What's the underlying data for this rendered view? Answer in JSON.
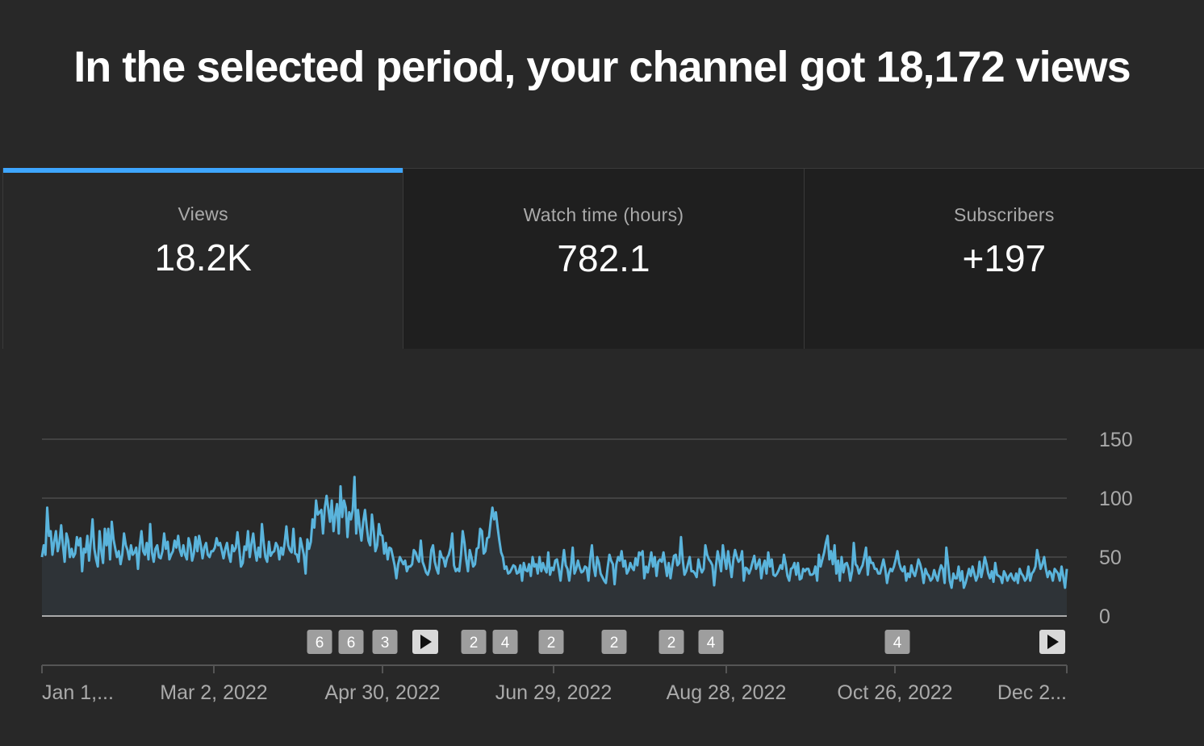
{
  "headline": "In the selected period, your channel got 18,172 views",
  "tabs": [
    {
      "label": "Views",
      "value": "18.2K",
      "active": true
    },
    {
      "label": "Watch time (hours)",
      "value": "782.1",
      "active": false
    },
    {
      "label": "Subscribers",
      "value": "+197",
      "active": false
    }
  ],
  "colors": {
    "line": "#5ab4dc",
    "area": "#2e3337",
    "accent": "#3ea6ff"
  },
  "chart_data": {
    "type": "area",
    "series_name": "Views",
    "x_start": "2022-01-01",
    "ylim": [
      0,
      150
    ],
    "y_ticks": [
      "150",
      "100",
      "50",
      "0"
    ],
    "x_ticks": [
      "Jan 1,...",
      "Mar 2, 2022",
      "Apr 30, 2022",
      "Jun 29, 2022",
      "Aug 28, 2022",
      "Oct 26, 2022",
      "Dec 2..."
    ],
    "grid": true,
    "values": [
      50,
      60,
      52,
      92,
      68,
      72,
      52,
      63,
      72,
      55,
      62,
      77,
      60,
      46,
      70,
      64,
      50,
      57,
      50,
      53,
      67,
      60,
      66,
      38,
      57,
      54,
      68,
      47,
      64,
      82,
      57,
      48,
      42,
      72,
      55,
      45,
      74,
      60,
      74,
      48,
      80,
      65,
      57,
      50,
      55,
      44,
      52,
      70,
      60,
      56,
      48,
      60,
      52,
      54,
      58,
      40,
      60,
      72,
      55,
      52,
      62,
      48,
      78,
      54,
      46,
      57,
      60,
      50,
      49,
      55,
      70,
      57,
      63,
      48,
      52,
      55,
      64,
      58,
      68,
      56,
      51,
      60,
      52,
      48,
      66,
      60,
      47,
      53,
      67,
      55,
      68,
      60,
      49,
      58,
      62,
      52,
      50,
      55,
      55,
      58,
      66,
      60,
      62,
      56,
      49,
      57,
      62,
      52,
      46,
      60,
      55,
      58,
      71,
      57,
      42,
      45,
      59,
      56,
      72,
      50,
      61,
      70,
      56,
      47,
      58,
      50,
      78,
      62,
      50,
      46,
      63,
      51,
      54,
      55,
      62,
      59,
      48,
      58,
      52,
      62,
      76,
      60,
      56,
      54,
      74,
      53,
      52,
      46,
      66,
      59,
      52,
      36,
      65,
      57,
      63,
      82,
      75,
      98,
      86,
      88,
      90,
      70,
      92,
      102,
      91,
      80,
      98,
      72,
      86,
      95,
      70,
      110,
      84,
      98,
      92,
      67,
      88,
      82,
      90,
      118,
      70,
      90,
      75,
      64,
      80,
      90,
      76,
      64,
      60,
      86,
      72,
      55,
      60,
      78,
      69,
      68,
      53,
      62,
      48,
      58,
      57,
      50,
      43,
      32,
      44,
      50,
      47,
      44,
      47,
      38,
      42,
      42,
      44,
      56,
      54,
      49,
      46,
      64,
      46,
      42,
      37,
      35,
      40,
      56,
      60,
      46,
      40,
      36,
      55,
      50,
      49,
      42,
      49,
      52,
      58,
      70,
      43,
      38,
      40,
      38,
      52,
      72,
      62,
      48,
      38,
      56,
      50,
      42,
      44,
      57,
      58,
      74,
      72,
      53,
      55,
      66,
      67,
      80,
      92,
      82,
      88,
      75,
      64,
      54,
      50,
      40,
      42,
      36,
      37,
      40,
      43,
      42,
      36,
      37,
      43,
      30,
      45,
      39,
      38,
      44,
      34,
      50,
      42,
      44,
      36,
      50,
      38,
      45,
      40,
      37,
      54,
      35,
      41,
      39,
      47,
      48,
      40,
      30,
      43,
      56,
      43,
      40,
      30,
      42,
      58,
      36,
      40,
      47,
      41,
      37,
      38,
      42,
      41,
      30,
      49,
      60,
      42,
      34,
      50,
      45,
      36,
      33,
      30,
      28,
      41,
      52,
      47,
      44,
      27,
      44,
      50,
      47,
      55,
      42,
      47,
      36,
      39,
      45,
      41,
      39,
      49,
      43,
      54,
      52,
      55,
      32,
      42,
      37,
      45,
      54,
      42,
      50,
      34,
      46,
      48,
      46,
      54,
      44,
      34,
      45,
      32,
      42,
      51,
      52,
      43,
      45,
      67,
      48,
      35,
      38,
      44,
      50,
      38,
      38,
      36,
      33,
      48,
      41,
      37,
      40,
      60,
      52,
      48,
      46,
      43,
      26,
      42,
      55,
      47,
      38,
      60,
      49,
      40,
      55,
      44,
      33,
      48,
      56,
      50,
      46,
      48,
      55,
      30,
      41,
      40,
      36,
      40,
      46,
      51,
      40,
      44,
      48,
      32,
      42,
      47,
      36,
      54,
      42,
      48,
      35,
      34,
      36,
      39,
      43,
      40,
      52,
      44,
      34,
      30,
      40,
      41,
      45,
      35,
      45,
      31,
      32,
      40,
      38,
      40,
      40,
      35,
      35,
      36,
      42,
      30,
      52,
      42,
      48,
      54,
      62,
      68,
      48,
      55,
      44,
      60,
      36,
      47,
      30,
      50,
      37,
      44,
      45,
      40,
      30,
      38,
      62,
      44,
      42,
      36,
      40,
      43,
      50,
      58,
      35,
      50,
      45,
      45,
      40,
      40,
      36,
      36,
      42,
      48,
      40,
      28,
      36,
      40,
      38,
      42,
      48,
      55,
      45,
      40,
      38,
      42,
      30,
      36,
      33,
      43,
      37,
      34,
      40,
      48,
      44,
      38,
      28,
      40,
      36,
      34,
      30,
      32,
      39,
      34,
      30,
      38,
      43,
      40,
      28,
      58,
      44,
      30,
      24,
      36,
      32,
      32,
      42,
      30,
      38,
      24,
      28,
      34,
      40,
      34,
      42,
      36,
      30,
      34,
      46,
      33,
      40,
      50,
      44,
      36,
      32,
      38,
      29,
      45,
      35,
      34,
      33,
      28,
      38,
      35,
      30,
      34,
      36,
      32,
      30,
      36,
      28,
      40,
      36,
      34,
      30,
      32,
      42,
      30,
      36,
      38,
      42,
      56,
      48,
      40,
      44,
      50,
      40,
      33,
      38,
      36,
      30,
      40,
      38,
      36,
      30,
      42,
      33,
      24,
      40
    ],
    "markers": [
      {
        "label": "6",
        "type": "count"
      },
      {
        "label": "6",
        "type": "count"
      },
      {
        "label": "3",
        "type": "count"
      },
      {
        "label": "",
        "type": "play"
      },
      {
        "label": "2",
        "type": "count"
      },
      {
        "label": "4",
        "type": "count"
      },
      {
        "label": "2",
        "type": "count"
      },
      {
        "label": "2",
        "type": "count"
      },
      {
        "label": "2",
        "type": "count"
      },
      {
        "label": "4",
        "type": "count"
      },
      {
        "label": "4",
        "type": "count"
      },
      {
        "label": "",
        "type": "play"
      }
    ]
  }
}
